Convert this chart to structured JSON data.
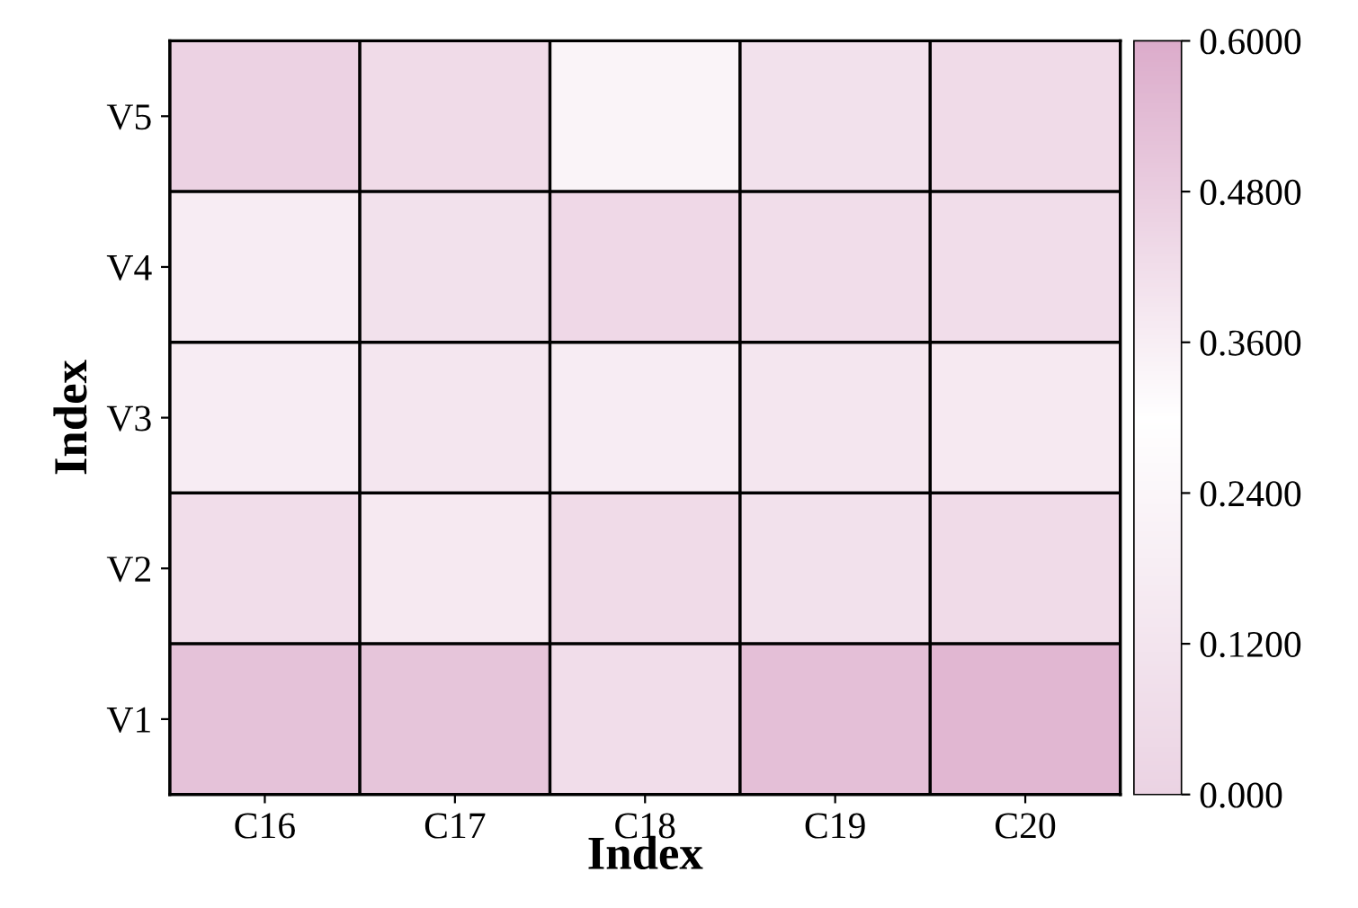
{
  "chart_data": {
    "type": "heatmap",
    "xlabel": "Index",
    "ylabel": "Index",
    "categories": [
      "C16",
      "C17",
      "C18",
      "C19",
      "C20"
    ],
    "y_categories": [
      "V5",
      "V4",
      "V3",
      "V2",
      "V1"
    ],
    "cells": [
      [
        0.46,
        0.43,
        0.34,
        0.41,
        0.43
      ],
      [
        0.37,
        0.41,
        0.44,
        0.42,
        0.42
      ],
      [
        0.37,
        0.39,
        0.37,
        0.39,
        0.38
      ],
      [
        0.42,
        0.38,
        0.43,
        0.41,
        0.43
      ],
      [
        0.52,
        0.51,
        0.42,
        0.53,
        0.56
      ]
    ],
    "clim": [
      0,
      0.6
    ],
    "cticks": [
      {
        "value": 0,
        "label": "0.000"
      },
      {
        "value": 0.12,
        "label": "0.1200"
      },
      {
        "value": 0.24,
        "label": "0.2400"
      },
      {
        "value": 0.36,
        "label": "0.3600"
      },
      {
        "value": 0.48,
        "label": "0.4800"
      },
      {
        "value": 0.6,
        "label": "0.6000"
      }
    ]
  }
}
